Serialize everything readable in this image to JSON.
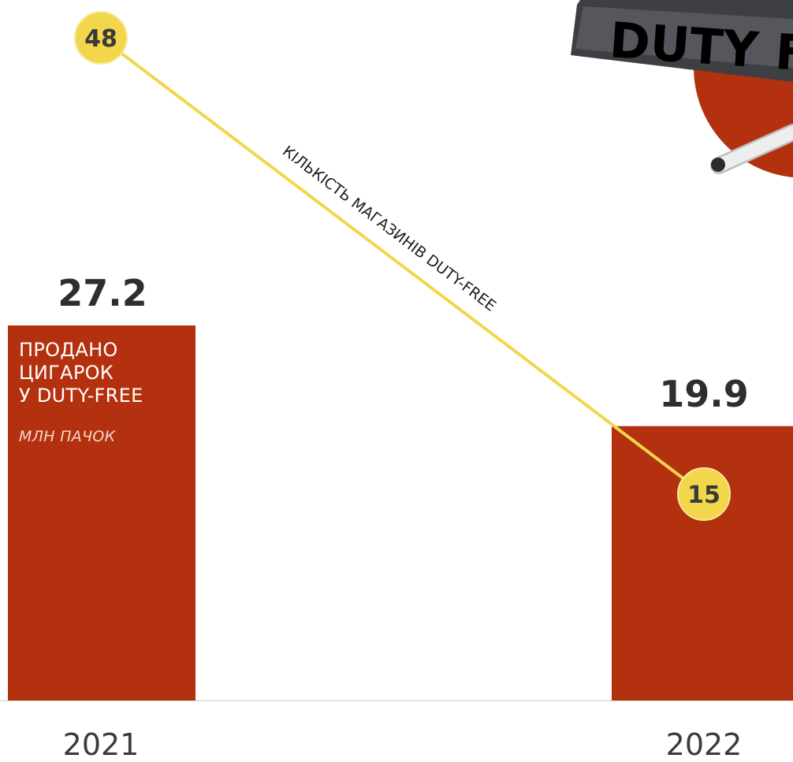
{
  "chart_data": {
    "type": "bar",
    "categories": [
      "2021",
      "2022"
    ],
    "series": [
      {
        "name": "ПРОДАНО ЦИГАРОК У DUTY-FREE",
        "unit": "МЛН ПАЧОК",
        "values": [
          27.2,
          19.9
        ],
        "type": "bar"
      },
      {
        "name": "КІЛЬКІСТЬ МАГАЗИНІВ DUTY-FREE",
        "values": [
          48,
          15
        ],
        "type": "line"
      }
    ],
    "bar_label_lines": [
      "ПРОДАНО",
      "ЦИГАРОК",
      "У DUTY-FREE"
    ],
    "colors": {
      "bar": "#b4310f",
      "line": "#f2d64b",
      "text": "#2e2e2e"
    }
  },
  "illustration": {
    "sign_text": "DUTY F",
    "icons": [
      "duty-free-sign-icon",
      "cigarette-icon"
    ]
  }
}
